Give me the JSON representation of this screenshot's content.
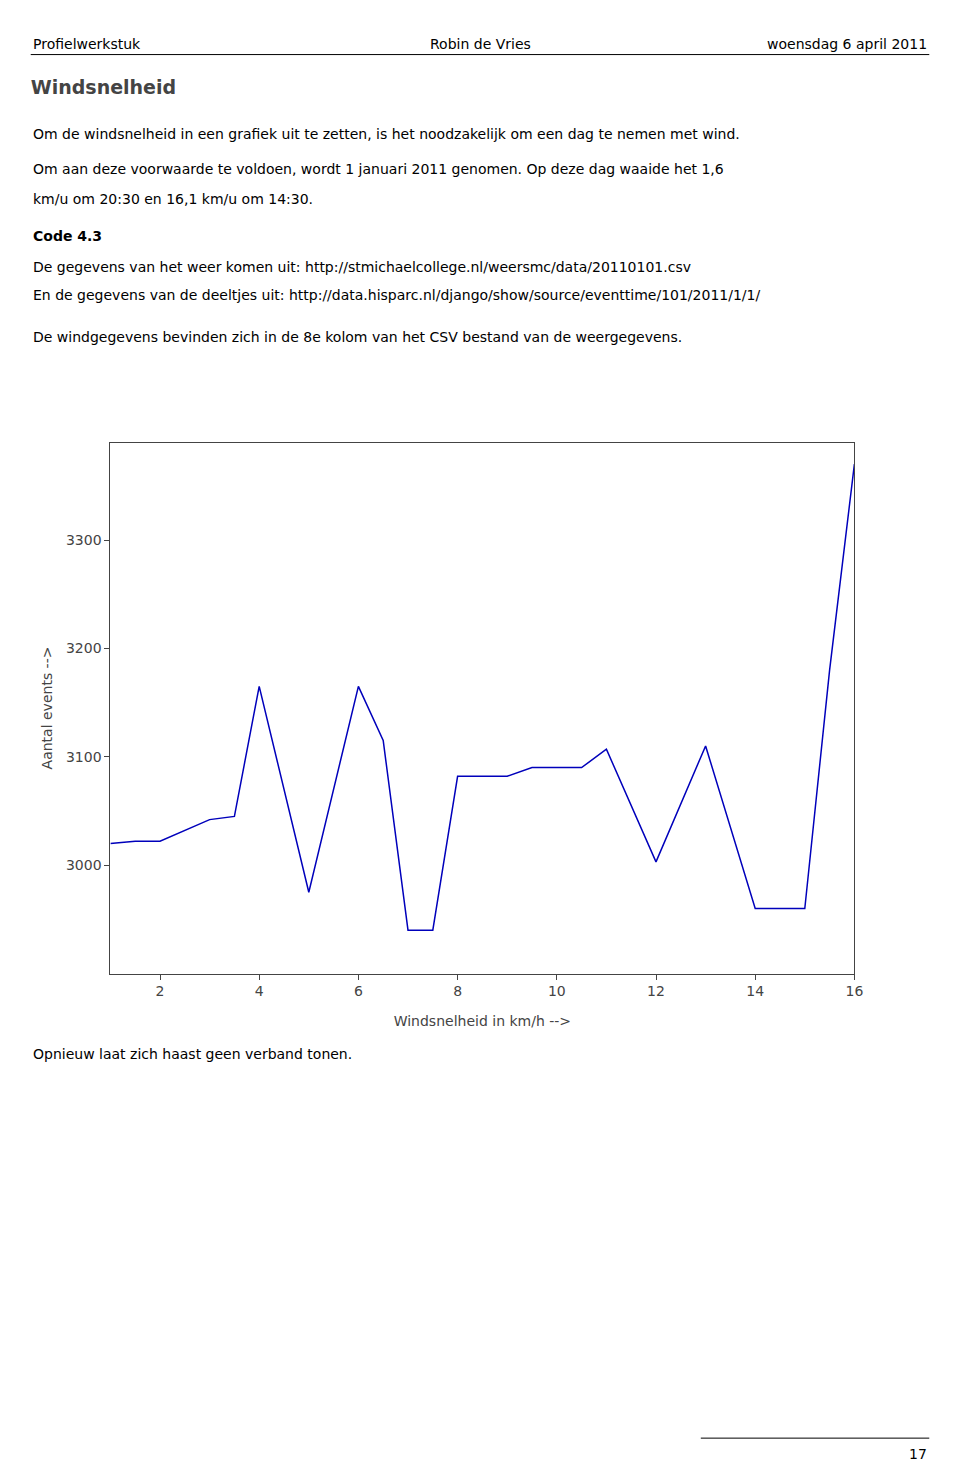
{
  "chart_data": {
    "type": "line",
    "title": "Windsnelheid",
    "annotations": [
      "Profielwerkstuk",
      "Robin de Vries",
      "woensdag 6 april 2011",
      "Om de windsnelheid in een grafiek uit te zetten, is het noodzakelijk om een dag te nemen met wind.",
      "Om aan deze voorwaarde te voldoen, wordt 1 januari 2011 genomen. Op deze dag waaide het 1,6",
      "km/u om 20:30 en 16,1 km/u om 14:30.",
      "Code 4.3",
      "De gegevens van het weer komen uit: http://stmichaelcollege.nl/weersmc/data/20110101.csv",
      "En de gegevens van de deeltjes uit: http://data.hisparc.nl/django/show/source/eventtime/101/2011/1/1/",
      "De windgegevens bevinden zich in de 8e kolom van het CSV bestand van de weergegevens.",
      "Opnieuw laat zich haast geen verband tonen.",
      "17"
    ],
    "x": [
      1,
      1.5,
      2,
      3,
      3.5,
      4,
      5,
      6,
      6.5,
      7,
      7.5,
      8,
      8.5,
      9,
      9.5,
      10,
      10.5,
      11,
      12,
      13,
      14,
      14.5,
      15,
      15.5,
      16
    ],
    "values": [
      3020,
      3022,
      3022,
      3042,
      3045,
      3165,
      2975,
      3165,
      3115,
      2940,
      2940,
      3082,
      3082,
      3082,
      3090,
      3090,
      3090,
      3107,
      3003,
      3110,
      2960,
      2960,
      2960,
      3180,
      3370
    ],
    "color": "#0000bb",
    "xlabel": "Windsnelheid in km/h -->",
    "ylabel": "Aantal events -->",
    "xlim": [
      1,
      16
    ],
    "ylim": [
      2900,
      3390
    ],
    "xticks": [
      2,
      4,
      6,
      8,
      10,
      12,
      14,
      16
    ],
    "yticks": [
      3000,
      3100,
      3200,
      3300
    ],
    "grid": false
  }
}
